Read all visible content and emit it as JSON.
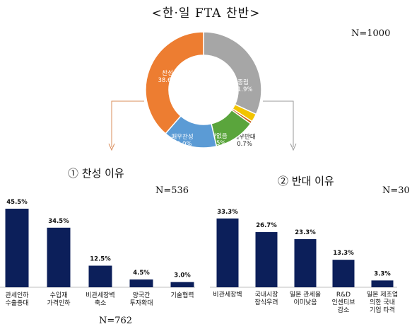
{
  "title": "<한·일 FTA 찬반>",
  "colors": {
    "bar": "#0c1f5a",
    "arrow": "#d98c5a",
    "arrow2": "#9a9a9a"
  },
  "chart_data": [
    {
      "type": "pie",
      "variant": "donut",
      "n_label": "N=1000",
      "slices": [
        {
          "name": "중립",
          "value": 31.9,
          "label": "31.9%",
          "color": "#a6a6a6"
        },
        {
          "name": "반대",
          "value": 2.3,
          "label": "2.3%",
          "color": "#f2c400"
        },
        {
          "name": "매우반대",
          "value": 0.7,
          "label": "0.7%",
          "color": "#c55a11"
        },
        {
          "name": "영향없음",
          "value": 11.5,
          "label": "11.5%",
          "color": "#5aa53c"
        },
        {
          "name": "매우찬성",
          "value": 15.0,
          "label": "15.0%",
          "color": "#5b9bd5"
        },
        {
          "name": "찬성",
          "value": 38.6,
          "label": "38.6%",
          "color": "#ed7d31"
        }
      ]
    },
    {
      "type": "bar",
      "heading": "① 찬성 이유",
      "n_label": "N=536",
      "n_label_bottom": "N=762",
      "categories": [
        "관세인하\n수출증대",
        "수입재\n가격인하",
        "비관세장벽\n축소",
        "양국간\n투자확대",
        "기술협력"
      ],
      "values": [
        45.5,
        34.5,
        12.5,
        4.5,
        3.0
      ],
      "value_labels": [
        "45.5%",
        "34.5%",
        "12.5%",
        "4.5%",
        "3.0%"
      ],
      "ylim": [
        0,
        50
      ]
    },
    {
      "type": "bar",
      "heading": "② 반대 이유",
      "n_label": "N=30",
      "categories": [
        "비관세장벽",
        "국내시장\n잠식우려",
        "일본 관세율\n이미낮음",
        "R&D\n인센티브\n감소",
        "일본 제조업\n의한 국내\n기업 타격"
      ],
      "values": [
        33.3,
        26.7,
        23.3,
        13.3,
        3.3
      ],
      "value_labels": [
        "33.3%",
        "26.7%",
        "23.3%",
        "13.3%",
        "3.3%"
      ],
      "ylim": [
        0,
        50
      ]
    }
  ]
}
